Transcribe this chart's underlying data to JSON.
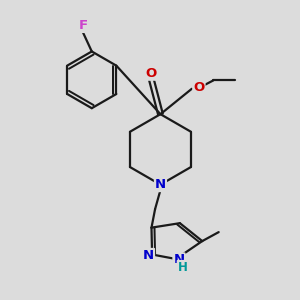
{
  "bg_color": "#dcdcdc",
  "bond_color": "#1a1a1a",
  "bond_width": 1.6,
  "F_color": "#cc44cc",
  "O_color": "#cc0000",
  "N_color": "#0000cc",
  "H_color": "#009999",
  "figsize": [
    3.0,
    3.0
  ],
  "dpi": 100,
  "xlim": [
    0,
    10
  ],
  "ylim": [
    0,
    10
  ]
}
